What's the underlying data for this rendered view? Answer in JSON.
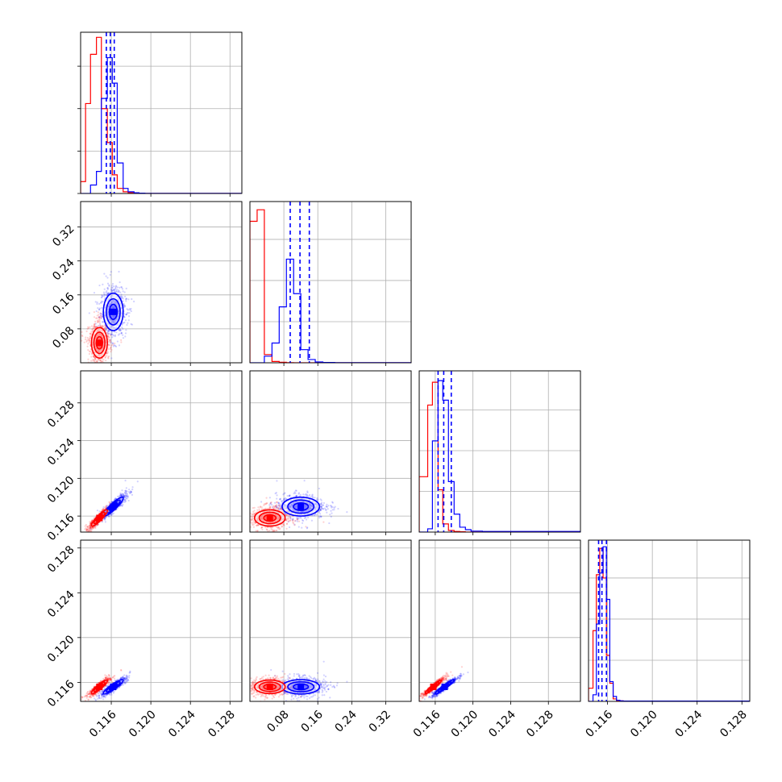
{
  "chart_data": {
    "type": "corner",
    "grid": true,
    "colors": {
      "red": "#ff0000",
      "blue": "#0000ff"
    },
    "variables": [
      {
        "lim": [
          0.1129,
          0.1292
        ],
        "ticks": [
          0.116,
          0.12,
          0.124,
          0.128
        ],
        "tick_labels": [
          "0.116",
          "0.120",
          "0.124",
          "0.128"
        ]
      },
      {
        "lim": [
          0.0,
          0.38
        ],
        "ticks": [
          0.08,
          0.16,
          0.24,
          0.32
        ],
        "tick_labels": [
          "0.08",
          "0.16",
          "0.24",
          "0.32"
        ]
      },
      {
        "lim": [
          0.1143,
          0.1314
        ],
        "ticks": [
          0.116,
          0.12,
          0.124,
          0.128
        ],
        "tick_labels": [
          "0.116",
          "0.120",
          "0.124",
          "0.128"
        ]
      },
      {
        "lim": [
          0.1143,
          0.1287
        ],
        "ticks": [
          0.116,
          0.12,
          0.124,
          0.128
        ],
        "tick_labels": [
          "0.116",
          "0.120",
          "0.124",
          "0.128"
        ]
      }
    ],
    "series": [
      {
        "color": "#ff0000",
        "mean": [
          0.1148,
          0.047,
          0.1158,
          0.1156
        ],
        "sd": [
          0.0004,
          0.018,
          0.00043,
          0.0003
        ],
        "corr": [
          [
            1,
            0,
            0.9,
            0.9
          ],
          [
            0,
            1,
            0,
            0
          ],
          [
            0.9,
            0,
            1,
            0.95
          ],
          [
            0.9,
            0,
            0.95,
            1
          ]
        ],
        "quantiles": [
          null,
          null,
          null,
          null
        ]
      },
      {
        "color": "#0000ff",
        "mean": [
          0.1162,
          0.12,
          0.117,
          0.1156
        ],
        "sd": [
          0.0005,
          0.022,
          0.0005,
          0.00032
        ],
        "corr": [
          [
            1,
            0,
            0.9,
            0.9
          ],
          [
            0,
            1,
            0,
            0
          ],
          [
            0.9,
            0,
            1,
            0.95
          ],
          [
            0.9,
            0,
            0.95,
            1
          ]
        ],
        "quantiles": [
          [
            0.1155,
            0.1159,
            0.1163
          ],
          [
            0.095,
            0.118,
            0.14
          ],
          [
            0.1163,
            0.1169,
            0.1177
          ],
          [
            0.1152,
            0.1155,
            0.1159
          ]
        ]
      }
    ],
    "histograms": [
      {
        "edges": [
          0.1129,
          0.1134,
          0.1139,
          0.1145,
          0.115,
          0.1156,
          0.1161,
          0.1166,
          0.1172,
          0.1177,
          0.1183,
          0.1188,
          0.1194,
          0.121,
          0.1292
        ],
        "red": [
          0.07,
          0.53,
          0.82,
          0.92,
          0.5,
          0.3,
          0.11,
          0.03,
          0.01,
          0.004,
          0.002,
          0,
          0,
          0
        ],
        "blue": [
          0,
          0,
          0.05,
          0.13,
          0.56,
          0.8,
          0.65,
          0.18,
          0.03,
          0.01,
          0.004,
          0.002,
          0.001,
          0.001
        ],
        "ymax": 0.95
      },
      {
        "edges": [
          0.0,
          0.017,
          0.034,
          0.052,
          0.069,
          0.086,
          0.103,
          0.12,
          0.137,
          0.154,
          0.172,
          0.2,
          0.3,
          0.38
        ],
        "red": [
          0.86,
          0.93,
          0.05,
          0.008,
          0.003,
          0.001,
          0,
          0,
          0,
          0,
          0,
          0,
          0
        ],
        "blue": [
          0,
          0,
          0.04,
          0.12,
          0.34,
          0.63,
          0.42,
          0.08,
          0.02,
          0.005,
          0.002,
          0.001,
          0.001
        ],
        "ymax": 0.98
      },
      {
        "edges": [
          0.1143,
          0.1152,
          0.1157,
          0.1163,
          0.1168,
          0.1174,
          0.118,
          0.1186,
          0.1192,
          0.1198,
          0.121,
          0.1314
        ],
        "red": [
          0.34,
          0.78,
          0.92,
          0.26,
          0.05,
          0.01,
          0.004,
          0.002,
          0,
          0,
          0
        ],
        "blue": [
          0,
          0.02,
          0.56,
          0.93,
          0.81,
          0.31,
          0.11,
          0.03,
          0.015,
          0.006,
          0.004
        ],
        "ymax": 0.99
      },
      {
        "edges": [
          0.1143,
          0.1147,
          0.115,
          0.1153,
          0.1156,
          0.1159,
          0.1162,
          0.1165,
          0.1168,
          0.1171,
          0.1174,
          0.1287
        ],
        "red": [
          0.08,
          0.43,
          0.77,
          0.93,
          0.75,
          0.28,
          0.11,
          0.015,
          0.005,
          0.003,
          0.002
        ],
        "blue": [
          0,
          0.04,
          0.47,
          0.78,
          0.94,
          0.62,
          0.12,
          0.03,
          0.007,
          0.003,
          0.002
        ],
        "ymax": 0.98
      }
    ]
  }
}
